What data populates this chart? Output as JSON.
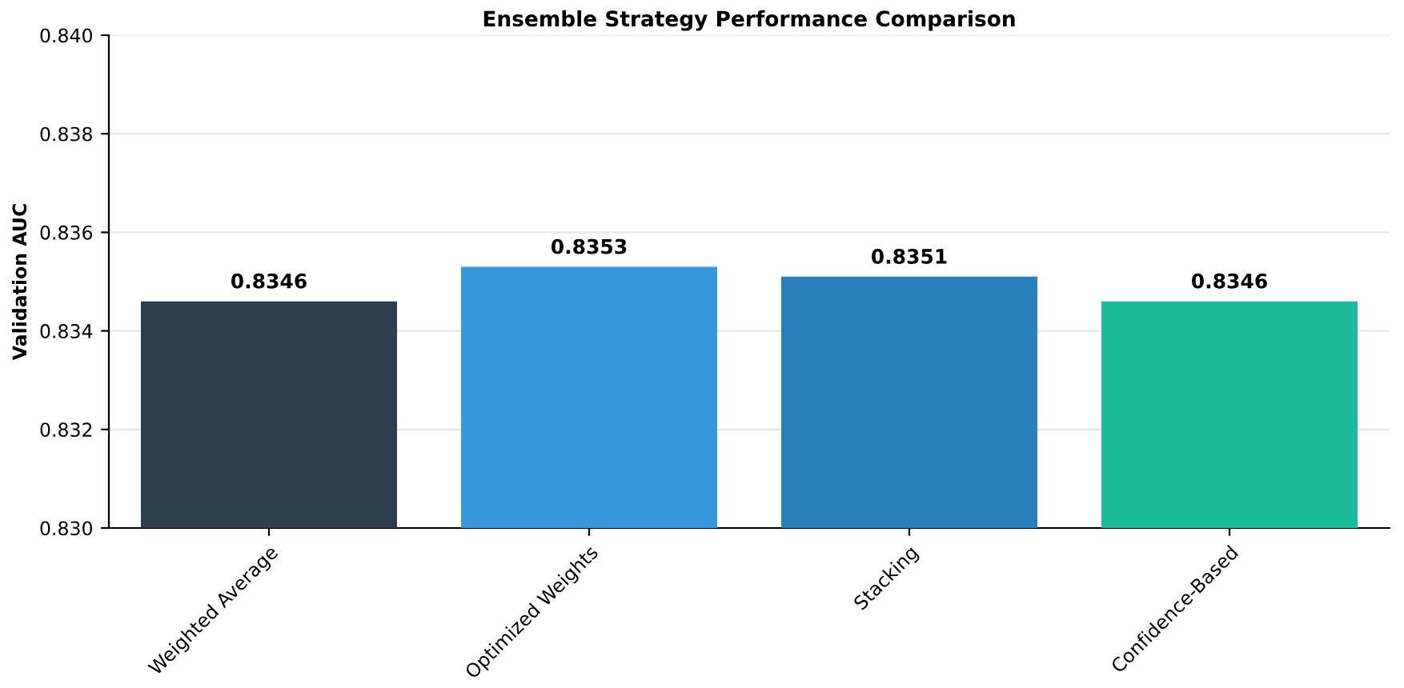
{
  "chart_data": {
    "type": "bar",
    "title": "Ensemble Strategy Performance Comparison",
    "ylabel": "Validation AUC",
    "categories": [
      "Weighted Average",
      "Optimized Weights",
      "Stacking",
      "Confidence-Based"
    ],
    "values": [
      0.8346,
      0.8353,
      0.8351,
      0.8346
    ],
    "colors": [
      "#2c3e50",
      "#3498db",
      "#2980b9",
      "#1abc9c"
    ],
    "ylim": [
      0.83,
      0.84
    ],
    "yticks": [
      "0.830",
      "0.832",
      "0.834",
      "0.836",
      "0.838",
      "0.840"
    ],
    "grid": "y",
    "data_labels": true
  }
}
